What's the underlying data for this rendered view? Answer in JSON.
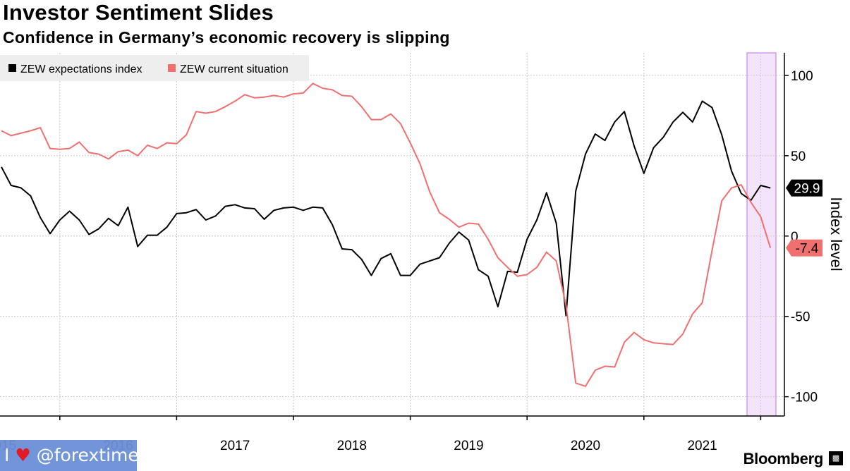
{
  "title": "Investor Sentiment Slides",
  "subtitle": "Confidence in Germany’s economic recovery is slipping",
  "brand": "Bloomberg",
  "watermark": {
    "prefix": "I",
    "handle": "@forextimes_ru",
    "heart_icon": "heart-icon"
  },
  "colors": {
    "expectations": "#000000",
    "current": "#f07070",
    "highlight": "#f3e3fb",
    "highlight_border": "#c070e0"
  },
  "chart_data": {
    "type": "line",
    "title": "Investor Sentiment Slides",
    "subtitle": "Confidence in Germany’s economic recovery is slipping",
    "ylabel": "Index level",
    "xlabel": "",
    "ylim": [
      -112,
      114
    ],
    "yticks": [
      100,
      50,
      0,
      -50,
      -100
    ],
    "xticks": [
      "2015",
      "2016",
      "2017",
      "2018",
      "2019",
      "2020",
      "2021"
    ],
    "x_start": "2014-07",
    "grid": true,
    "legend_position": "top-left",
    "highlight_period": [
      "2021-06",
      "2021-08"
    ],
    "end_labels": {
      "expectations": "29.9",
      "current": "-7.4"
    },
    "series": [
      {
        "name": "ZEW expectations index",
        "color": "#000000",
        "values": [
          43,
          31.5,
          30,
          25,
          11.5,
          1.5,
          10,
          15.5,
          10,
          1,
          4.5,
          11,
          6.5,
          18,
          -6.5,
          0.5,
          0.5,
          5.5,
          14,
          14.5,
          16.5,
          10,
          12.5,
          18.5,
          19.5,
          17.5,
          17,
          10.5,
          16,
          17.5,
          18,
          16,
          18,
          17.5,
          7,
          -8,
          -8.5,
          -14.5,
          -24.5,
          -14,
          -11,
          -24.5,
          -24.5,
          -17.5,
          -15.5,
          -13.5,
          -4.5,
          2.5,
          -2.5,
          -21,
          -25,
          -44,
          -22,
          -22.5,
          -2,
          10,
          27,
          8,
          -49.5,
          28,
          51,
          63.5,
          59.5,
          71,
          77.5,
          56,
          39,
          55,
          61.5,
          71,
          77,
          71,
          84,
          80,
          63,
          40.5,
          26.5,
          22.3,
          31.5,
          29.9
        ]
      },
      {
        "name": "ZEW current situation",
        "color": "#f07070",
        "values": [
          65.5,
          62.5,
          64,
          65.5,
          67.5,
          54.5,
          54,
          54.5,
          58.5,
          52,
          51,
          48,
          52.5,
          53.5,
          50,
          56.5,
          54.5,
          58,
          57.5,
          63,
          77.5,
          76.5,
          77.5,
          80.5,
          84,
          88,
          86,
          86.5,
          87.5,
          86.5,
          88.5,
          89,
          95,
          92,
          91,
          87.5,
          87,
          80.5,
          72.5,
          72.5,
          76,
          70,
          58,
          45,
          27.5,
          14.5,
          10.5,
          5.5,
          8,
          7.5,
          -2,
          -13.5,
          -19.5,
          -25,
          -24,
          -19.5,
          -10,
          -15.5,
          -43,
          -91.5,
          -93.5,
          -83.5,
          -81,
          -81.5,
          -66,
          -60,
          -64.5,
          -66.5,
          -67,
          -67.5,
          -61,
          -48.5,
          -41.5,
          -9,
          21.9,
          29.9,
          31.9,
          21,
          12,
          -7.4
        ]
      }
    ]
  }
}
